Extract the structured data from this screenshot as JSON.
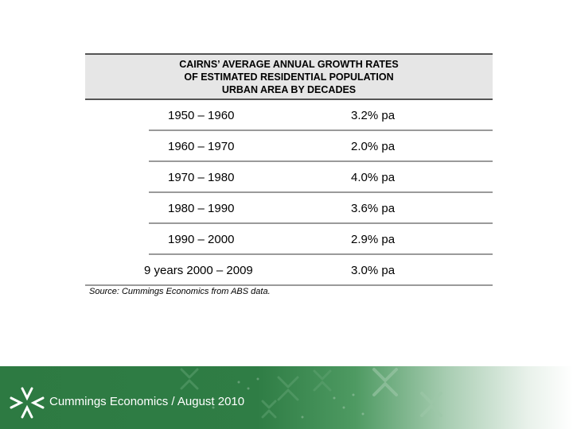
{
  "table": {
    "title_lines": [
      "CAIRNS’ AVERAGE ANNUAL GROWTH RATES",
      "OF ESTIMATED RESIDENTIAL POPULATION",
      "URBAN AREA BY DECADES"
    ],
    "rows": [
      {
        "period": "1950 – 1960",
        "rate": "3.2% pa"
      },
      {
        "period": "1960 – 1970",
        "rate": "2.0% pa"
      },
      {
        "period": "1970 – 1980",
        "rate": "4.0% pa"
      },
      {
        "period": "1980 – 1990",
        "rate": "3.6% pa"
      },
      {
        "period": "1990 – 2000",
        "rate": "2.9% pa"
      },
      {
        "period": "9 years 2000 – 2009",
        "rate": "3.0% pa"
      }
    ]
  },
  "source": "Source:  Cummings Economics from ABS data.",
  "footer": {
    "text": "Cummings Economics / August 2010",
    "logo_icon": "cummings-logo-icon",
    "colors": {
      "green": "#2d7a42",
      "white": "#ffffff"
    }
  }
}
